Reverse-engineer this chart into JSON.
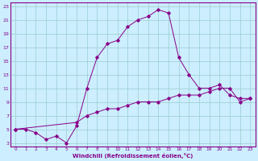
{
  "xlabel": "Windchill (Refroidissement éolien,°C)",
  "bg_color": "#cceeff",
  "line_color": "#880088",
  "grid_color": "#99cccc",
  "line1_x": [
    0,
    1,
    2,
    3,
    4,
    5,
    6,
    7,
    8,
    9,
    10,
    11,
    12,
    13,
    14,
    15,
    16,
    17,
    18,
    19,
    20,
    21,
    22,
    23
  ],
  "line1_y": [
    5,
    5,
    4.5,
    3.5,
    4,
    3,
    5.5,
    11,
    15.5,
    17.5,
    18,
    20,
    21,
    21.5,
    22.5,
    22,
    15.5,
    13,
    11,
    11,
    11.5,
    10,
    9.5,
    9.5
  ],
  "line2_x": [
    0,
    6,
    7,
    8,
    9,
    10,
    11,
    12,
    13,
    14,
    15,
    16,
    17,
    18,
    19,
    20,
    21,
    22,
    23
  ],
  "line2_y": [
    5,
    6,
    7,
    7.5,
    8,
    8,
    8.5,
    9,
    9,
    9,
    9.5,
    10,
    10,
    10,
    10.5,
    11,
    11,
    9,
    9.5
  ],
  "xlim": [
    -0.5,
    23.5
  ],
  "ylim": [
    2.5,
    23.5
  ],
  "xticks": [
    0,
    1,
    2,
    3,
    4,
    5,
    6,
    7,
    8,
    9,
    10,
    11,
    12,
    13,
    14,
    15,
    16,
    17,
    18,
    19,
    20,
    21,
    22,
    23
  ],
  "yticks": [
    3,
    5,
    7,
    9,
    11,
    13,
    15,
    17,
    19,
    21,
    23
  ]
}
